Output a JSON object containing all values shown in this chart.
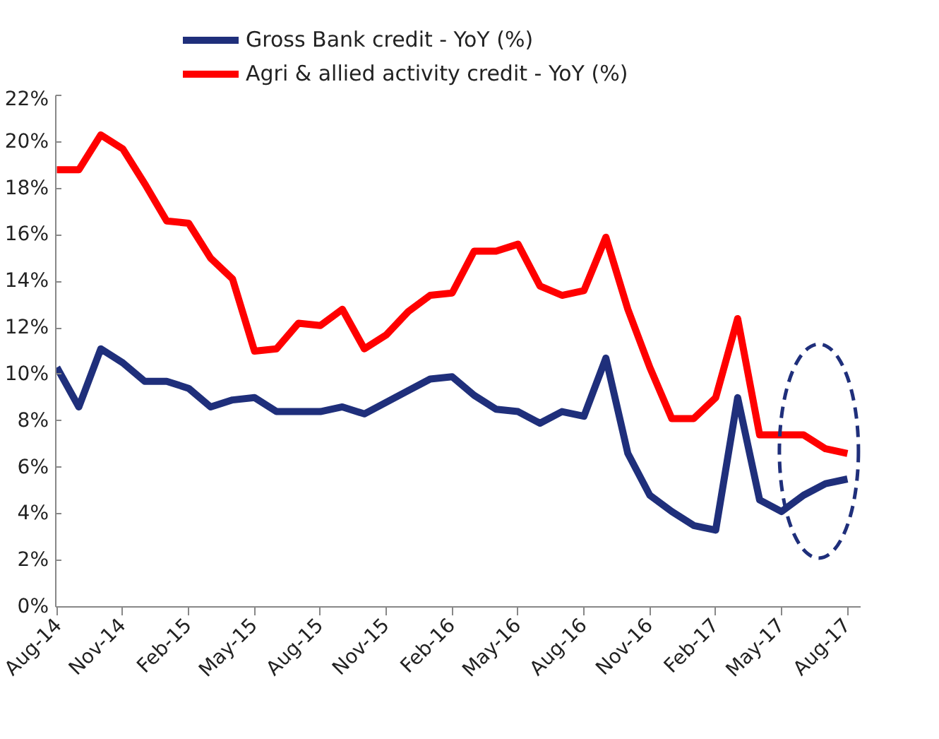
{
  "chart_data": {
    "type": "line",
    "categories": [
      "Aug-14",
      null,
      null,
      "Nov-14",
      null,
      null,
      "Feb-15",
      null,
      null,
      "May-15",
      null,
      null,
      "Aug-15",
      null,
      null,
      "Nov-15",
      null,
      null,
      "Feb-16",
      null,
      null,
      "May-16",
      null,
      null,
      "Aug-16",
      null,
      null,
      "Nov-16",
      null,
      null,
      "Feb-17",
      null,
      null,
      "May-17",
      null,
      null,
      "Aug-17"
    ],
    "series": [
      {
        "name": "Gross Bank credit - YoY (%)",
        "color": "#1f2f7b",
        "values": [
          10.3,
          8.6,
          11.1,
          10.5,
          9.7,
          9.7,
          9.4,
          8.6,
          8.9,
          9.0,
          8.4,
          8.4,
          8.4,
          8.6,
          8.3,
          8.8,
          9.3,
          9.8,
          9.9,
          9.1,
          8.5,
          8.4,
          7.9,
          8.4,
          8.2,
          10.7,
          6.6,
          4.8,
          4.1,
          3.5,
          3.3,
          9.0,
          4.6,
          4.1,
          4.8,
          5.3,
          5.5
        ]
      },
      {
        "name": "Agri & allied activity credit - YoY (%)",
        "color": "#ff0000",
        "values": [
          18.8,
          18.8,
          20.3,
          19.7,
          18.2,
          16.6,
          16.5,
          15.0,
          14.1,
          11.0,
          11.1,
          12.2,
          12.1,
          12.8,
          11.1,
          11.7,
          12.7,
          13.4,
          13.5,
          15.3,
          15.3,
          15.6,
          13.8,
          13.4,
          13.6,
          15.9,
          12.8,
          10.3,
          8.1,
          8.1,
          9.0,
          12.4,
          7.4,
          7.4,
          7.4,
          6.8,
          6.6
        ]
      }
    ],
    "ylim": [
      0,
      22
    ],
    "yticks": [
      {
        "value": 0,
        "label": "0%"
      },
      {
        "value": 2,
        "label": "2%"
      },
      {
        "value": 4,
        "label": "4%"
      },
      {
        "value": 6,
        "label": "6%"
      },
      {
        "value": 8,
        "label": "8%"
      },
      {
        "value": 10,
        "label": "10%"
      },
      {
        "value": 12,
        "label": "12%"
      },
      {
        "value": 14,
        "label": "14%"
      },
      {
        "value": 16,
        "label": "16%"
      },
      {
        "value": 18,
        "label": "18%"
      },
      {
        "value": 20,
        "label": "20%"
      },
      {
        "value": 22,
        "label": "22%"
      }
    ],
    "grid": false,
    "legend": "top",
    "marker": "none",
    "line_style": "solid"
  }
}
